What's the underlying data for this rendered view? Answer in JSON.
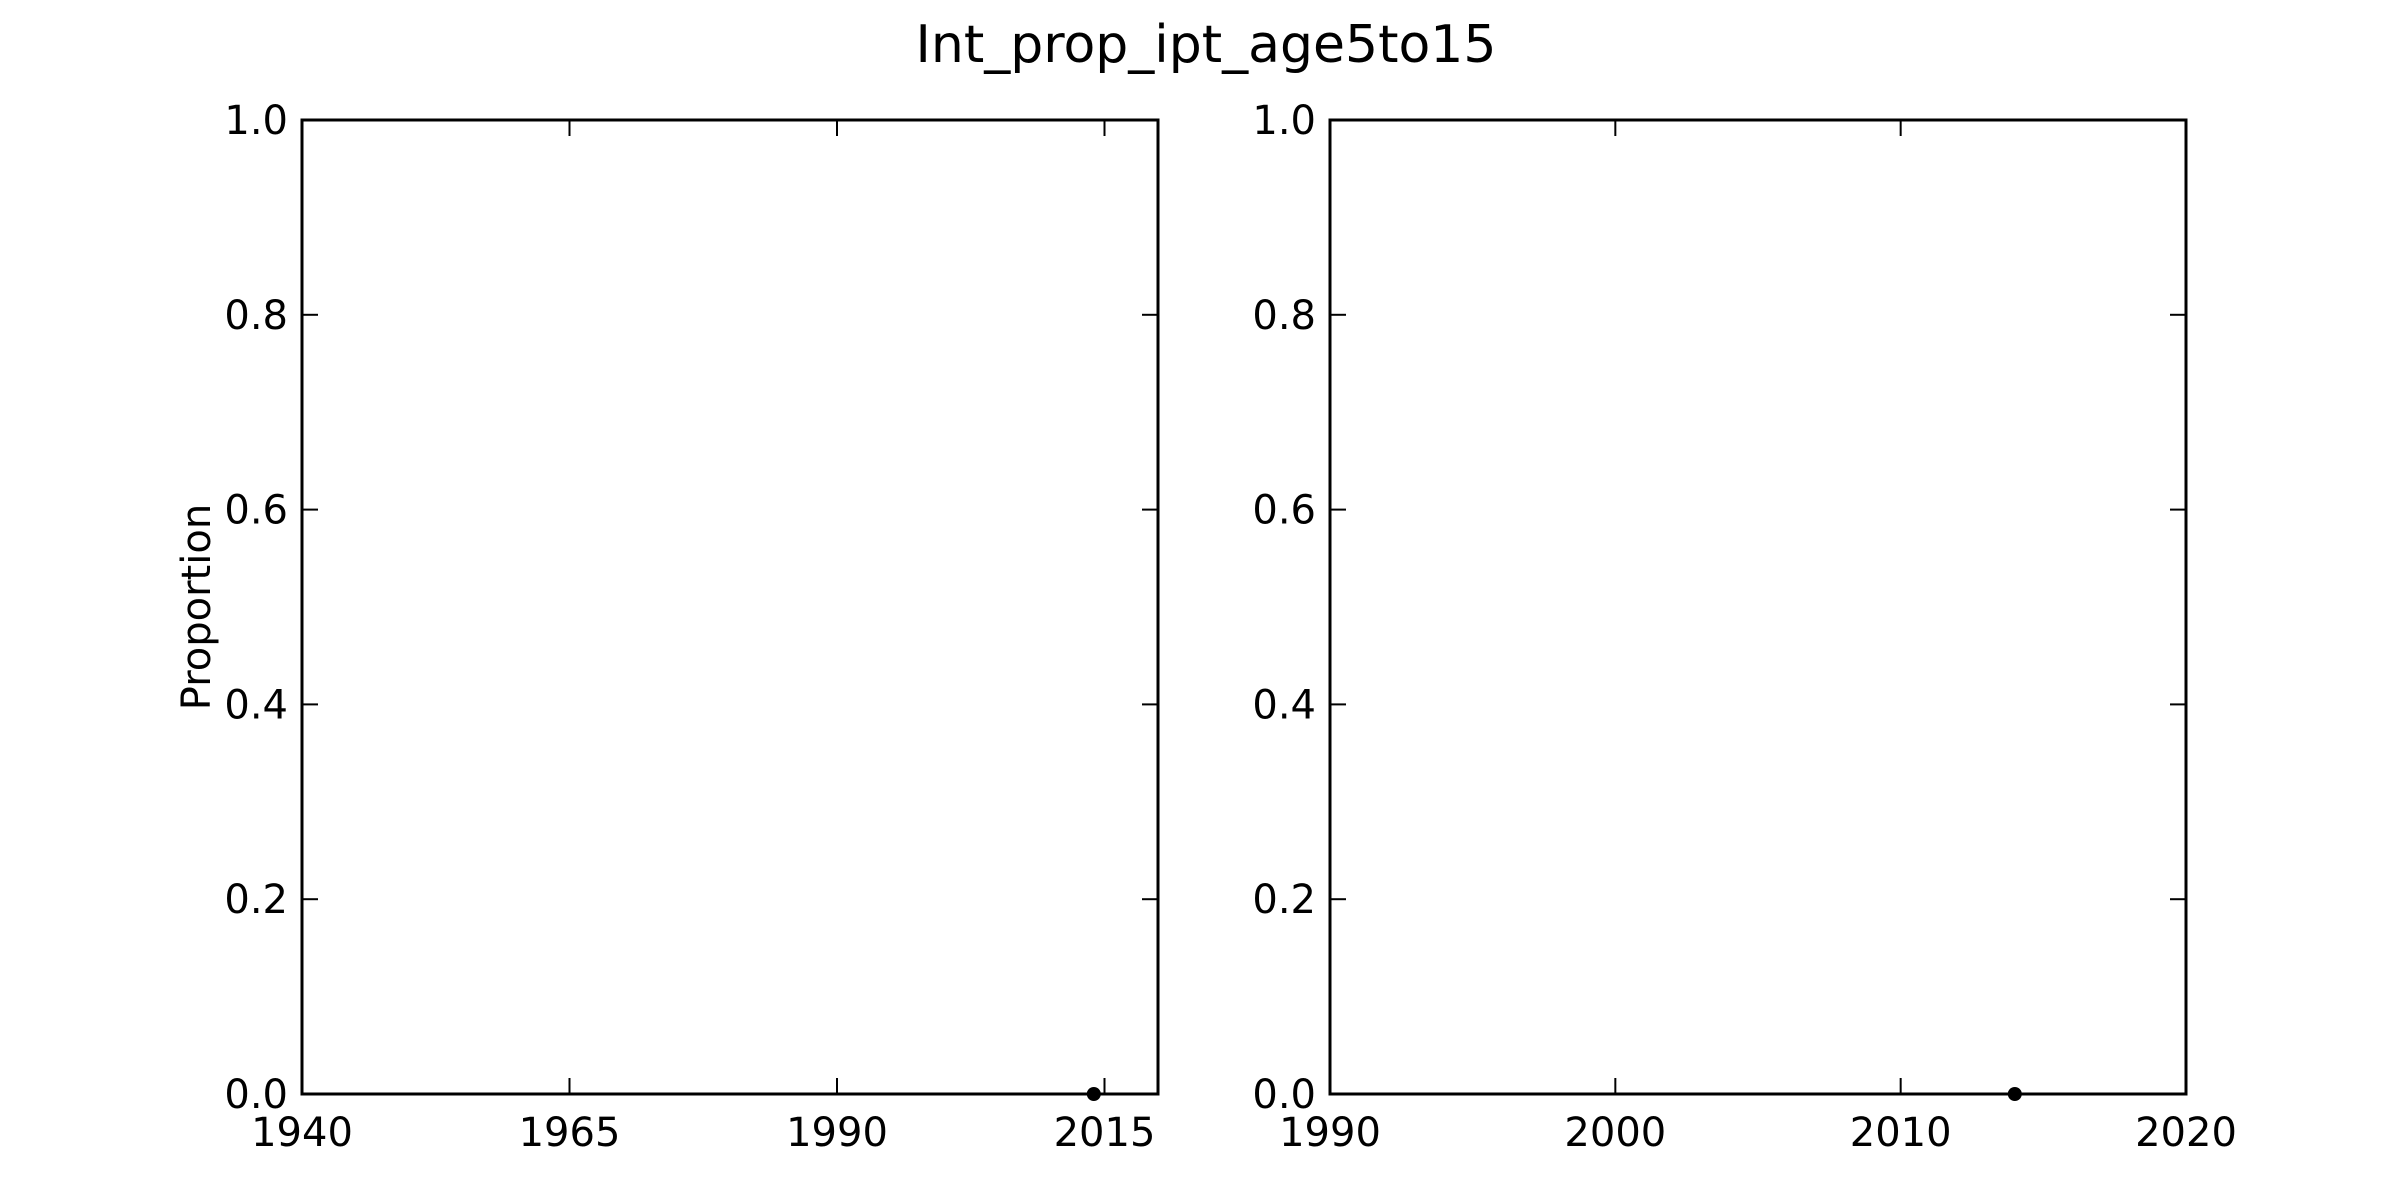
{
  "chart_data": {
    "type": "scatter",
    "title": "Int_prop_ipt_age5to15",
    "panels": [
      {
        "xlabel": "",
        "ylabel": "Proportion",
        "xlim": [
          1940,
          2020
        ],
        "ylim": [
          0,
          1
        ],
        "x_ticks": [
          "1940",
          "1965",
          "1990",
          "2015"
        ],
        "y_ticks": [
          "0.0",
          "0.2",
          "0.4",
          "0.6",
          "0.8",
          "1.0"
        ],
        "grid": false,
        "series": [
          {
            "x": [
              2014
            ],
            "y": [
              0.0
            ],
            "color": "#000000"
          }
        ]
      },
      {
        "xlabel": "",
        "ylabel": "",
        "xlim": [
          1990,
          2020
        ],
        "ylim": [
          0,
          1
        ],
        "x_ticks": [
          "1990",
          "2000",
          "2010",
          "2020"
        ],
        "y_ticks": [
          "0.0",
          "0.2",
          "0.4",
          "0.6",
          "0.8",
          "1.0"
        ],
        "grid": false,
        "series": [
          {
            "x": [
              2014
            ],
            "y": [
              0.0
            ],
            "color": "#000000"
          }
        ]
      }
    ]
  }
}
